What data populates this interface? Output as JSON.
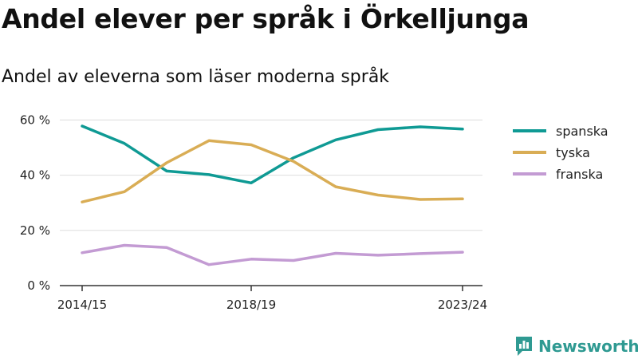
{
  "title": "Andel elever per språk i Örkelljunga",
  "subtitle": "Andel av eleverna som läser moderna språk",
  "brand": {
    "name": "Newsworthy",
    "icon": "newsworthy-logo-icon",
    "color": "#2f9a92"
  },
  "chart_data": {
    "type": "line",
    "title": "Andel elever per språk i Örkelljunga",
    "subtitle": "Andel av eleverna som läser moderna språk",
    "x": [
      "2014/15",
      "2015/16",
      "2016/17",
      "2017/18",
      "2018/19",
      "2019/20",
      "2020/21",
      "2021/22",
      "2022/23",
      "2023/24"
    ],
    "x_tick_labels": [
      "2014/15",
      "2018/19",
      "2023/24"
    ],
    "y_ticks": [
      0,
      20,
      40,
      60
    ],
    "y_tick_labels": [
      "0 %",
      "20 %",
      "40 %",
      "60 %"
    ],
    "ylim": [
      0,
      63
    ],
    "grid": true,
    "legend_position": "right",
    "series": [
      {
        "name": "spanska",
        "color": "#0f9a94",
        "values": [
          57.8,
          51.5,
          41.5,
          40.2,
          37.2,
          46.3,
          52.8,
          56.5,
          57.5,
          56.7
        ]
      },
      {
        "name": "tyska",
        "color": "#d9ad55",
        "values": [
          30.3,
          34.0,
          44.5,
          52.5,
          51.0,
          45.0,
          35.8,
          32.8,
          31.2,
          31.4
        ]
      },
      {
        "name": "franska",
        "color": "#c39bd3",
        "values": [
          11.9,
          14.6,
          13.8,
          7.6,
          9.6,
          9.1,
          11.7,
          11.0,
          11.6,
          12.1
        ]
      }
    ]
  }
}
